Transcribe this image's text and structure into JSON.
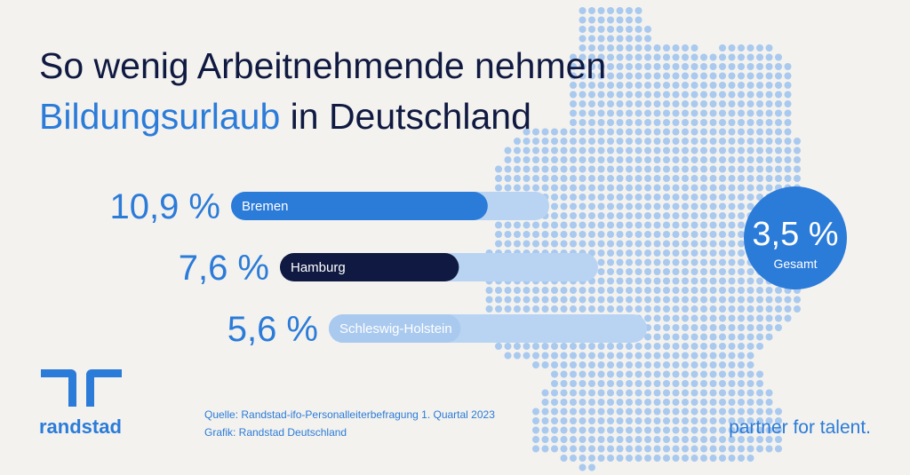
{
  "chart_data": {
    "type": "bar",
    "title_line1": "So wenig Arbeitnehmende nehmen",
    "title_highlight": "Bildungsurlaub",
    "title_rest": " in Deutschland",
    "categories": [
      "Bremen",
      "Hamburg",
      "Schleswig-Holstein"
    ],
    "values": [
      10.9,
      7.6,
      5.6
    ],
    "value_labels": [
      "10,9 %",
      "7,6 %",
      "5,6 %"
    ],
    "colors": [
      "#2b7bd9",
      "#0f1941",
      "#a9c9ef"
    ],
    "total": {
      "value": 3.5,
      "value_label": "3,5 %",
      "label": "Gesamt",
      "color": "#2b7bd9"
    },
    "source": "Quelle: Randstad-ifo-Personalleiterbefragung 1. Quartal 2023",
    "graphic": "Grafik: Randstad Deutschland",
    "brand": "randstad",
    "slogan": "partner for talent."
  }
}
